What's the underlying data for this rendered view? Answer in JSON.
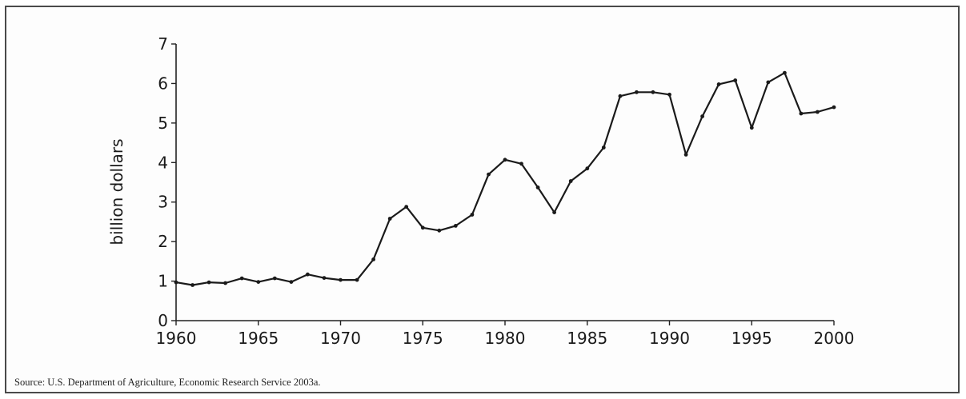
{
  "chart_data": {
    "type": "line",
    "title": "",
    "xlabel": "",
    "ylabel": "billion dollars",
    "xlim": [
      1960,
      2000
    ],
    "ylim": [
      0,
      7
    ],
    "x_ticks": [
      "1960",
      "1965",
      "1970",
      "1975",
      "1980",
      "1985",
      "1990",
      "1995",
      "2000"
    ],
    "y_ticks": [
      "0",
      "1",
      "2",
      "3",
      "4",
      "5",
      "6",
      "7"
    ],
    "grid": false,
    "series": [
      {
        "x": [
          1960,
          1961,
          1962,
          1963,
          1964,
          1965,
          1966,
          1967,
          1968,
          1969,
          1970,
          1971,
          1972,
          1973,
          1974,
          1975,
          1976,
          1977,
          1978,
          1979,
          1980,
          1981,
          1982,
          1983,
          1984,
          1985,
          1986,
          1987,
          1988,
          1989,
          1990,
          1991,
          1992,
          1993,
          1994,
          1995,
          1996,
          1997,
          1998,
          1999,
          2000
        ],
        "values": [
          0.97,
          0.9,
          0.97,
          0.95,
          1.07,
          0.98,
          1.07,
          0.98,
          1.17,
          1.08,
          1.03,
          1.03,
          1.55,
          2.58,
          2.88,
          2.35,
          2.28,
          2.4,
          2.68,
          3.7,
          4.07,
          3.97,
          3.37,
          2.74,
          3.53,
          3.85,
          4.38,
          5.68,
          5.78,
          5.78,
          5.72,
          4.2,
          5.17,
          5.98,
          6.08,
          4.88,
          6.03,
          6.27,
          5.24,
          5.28,
          5.4
        ]
      }
    ]
  },
  "source_note": "Source: U.S. Department of Agriculture, Economic Research Service 2003a."
}
